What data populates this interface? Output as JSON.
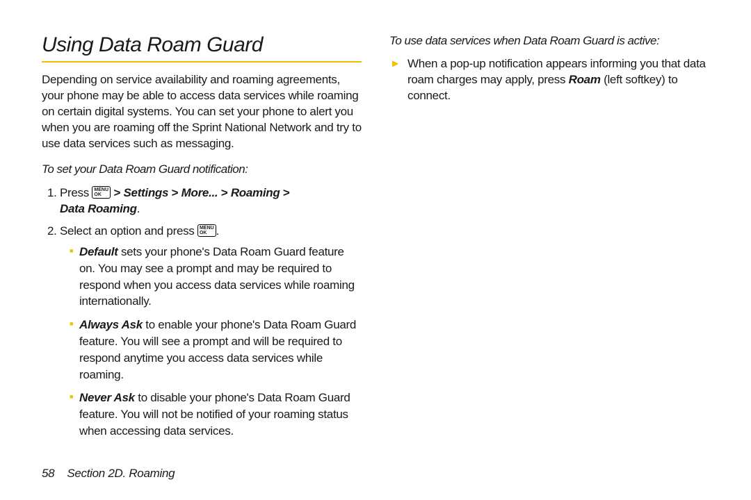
{
  "accent_color": "#f0c000",
  "left": {
    "title": "Using Data Roam Guard",
    "intro": "Depending on service availability and roaming agreements, your phone may be able to access data services while roaming on certain digital systems. You can set your phone to alert you when you are roaming off the Sprint National Network and try to use data services such as messaging.",
    "subhead": "To set your Data Roam Guard notification:",
    "step1_press": "Press ",
    "step1_path_a": " > ",
    "step1_settings": "Settings",
    "step1_more": "More...",
    "step1_roaming": "Roaming",
    "step1_data": "Data Roaming",
    "step1_gt": " > ",
    "step1_period": ".",
    "step2_a": "Select an option and press ",
    "step2_b": ".",
    "opt_default_lead": "Default",
    "opt_default_body": " sets your phone's Data Roam Guard feature on. You may see a prompt and may be required to respond when you access data services while roaming internationally.",
    "opt_always_lead": "Always Ask",
    "opt_always_body": " to enable your phone's Data Roam Guard feature. You will see a prompt and will be required to respond anytime you access data services while roaming.",
    "opt_never_lead": "Never Ask",
    "opt_never_body": " to disable your phone's Data Roam Guard feature. You will not be notified of your roaming status when accessing data services."
  },
  "right": {
    "subhead": "To use data services when Data Roam Guard is active:",
    "body_a": "When a pop-up notification appears informing you that data roam charges may apply, press ",
    "body_roam": "Roam",
    "body_b": " (left softkey) to connect."
  },
  "footer": {
    "page": "58",
    "section": "Section 2D. Roaming"
  },
  "icon": {
    "top": "MENU",
    "bot": "OK"
  }
}
